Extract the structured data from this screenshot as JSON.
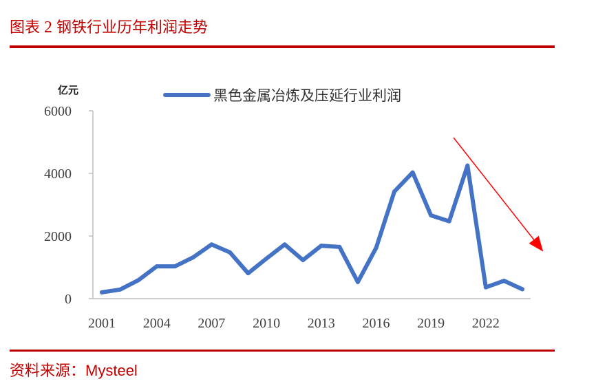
{
  "header": {
    "label": "图表",
    "number": "2",
    "title": "钢铁行业历年利润走势"
  },
  "footer": {
    "source_label": "资料来源：",
    "source_name": "Mysteel"
  },
  "colors": {
    "accent": "#c00000",
    "series": "#4472c4",
    "arrow": "#ff0000"
  },
  "chart_data": {
    "type": "line",
    "unit": "亿元",
    "ylim": [
      0,
      6000
    ],
    "yticks": [
      0,
      2000,
      4000,
      6000
    ],
    "xlim": [
      2001,
      2024
    ],
    "xticks": [
      2001,
      2004,
      2007,
      2010,
      2013,
      2016,
      2019,
      2022
    ],
    "legend_position": "top",
    "grid": false,
    "series": [
      {
        "name": "黑色金属冶炼及压延行业利润",
        "x": [
          2001,
          2002,
          2003,
          2004,
          2005,
          2006,
          2007,
          2008,
          2009,
          2010,
          2011,
          2012,
          2013,
          2014,
          2015,
          2016,
          2017,
          2018,
          2019,
          2020,
          2021,
          2022,
          2023,
          2024
        ],
        "values": [
          200,
          290,
          590,
          1030,
          1030,
          1320,
          1730,
          1480,
          810,
          1280,
          1730,
          1230,
          1690,
          1650,
          530,
          1620,
          3420,
          4030,
          2660,
          2470,
          4250,
          360,
          570,
          300
        ]
      }
    ],
    "annotations": [
      {
        "type": "arrow",
        "meaning": "downward trend"
      }
    ]
  }
}
